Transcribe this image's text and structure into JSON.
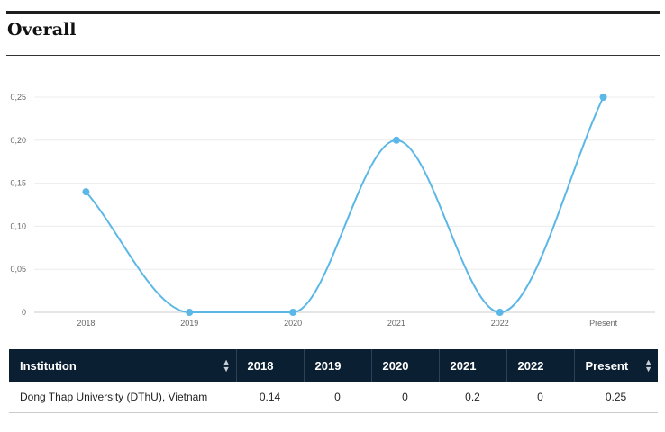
{
  "page": {
    "title": "Overall"
  },
  "chart_data": {
    "type": "line",
    "title": "",
    "xlabel": "",
    "ylabel": "",
    "categories": [
      "2018",
      "2019",
      "2020",
      "2021",
      "2022",
      "Present"
    ],
    "series": [
      {
        "values": [
          0.14,
          0,
          0,
          0.2,
          0,
          0.25
        ]
      }
    ],
    "ylim": [
      0,
      0.25
    ],
    "yticks": [
      0,
      0.05,
      0.1,
      0.15,
      0.2,
      0.25
    ],
    "ytick_labels": [
      "0",
      "0,05",
      "0,10",
      "0,15",
      "0,20",
      "0,25"
    ],
    "grid": true,
    "line_color": "#5bb8e6"
  },
  "table": {
    "headers": [
      "Institution",
      "2018",
      "2019",
      "2020",
      "2021",
      "2022",
      "Present"
    ],
    "rows": [
      [
        "Dong Thap University (DThU), Vietnam",
        "0.14",
        "0",
        "0",
        "0.2",
        "0",
        "0.25"
      ]
    ]
  }
}
